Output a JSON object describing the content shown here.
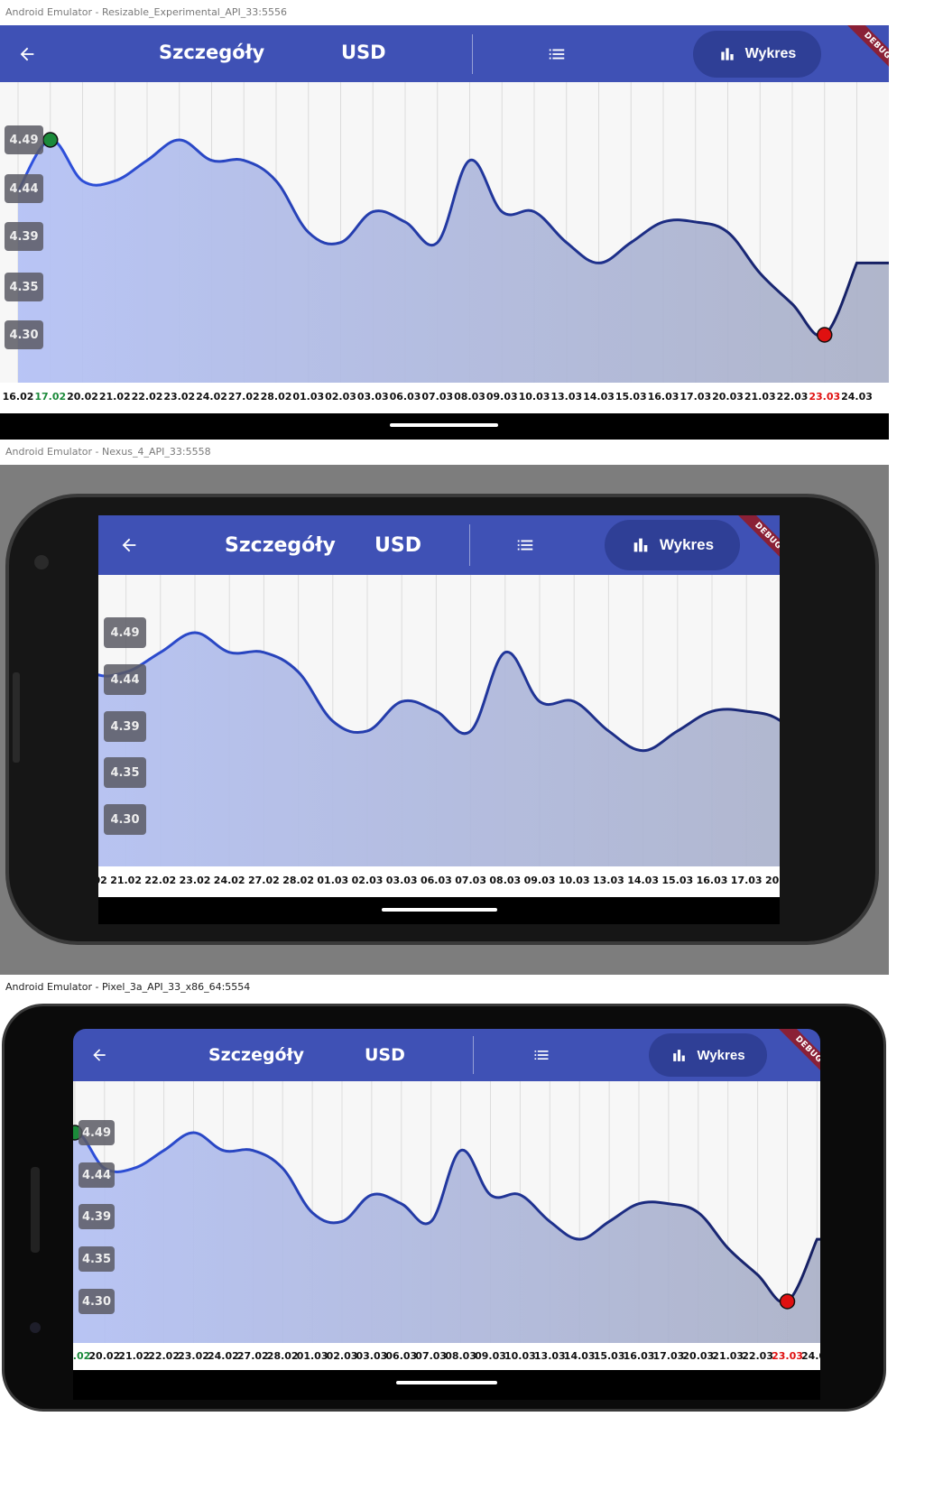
{
  "windows": [
    {
      "title": "Android Emulator - Resizable_Experimental_API_33:5556"
    },
    {
      "title": "Android Emulator - Nexus_4_API_33:5558"
    },
    {
      "title": "Android Emulator - Pixel_3a_API_33_x86_64:5554"
    }
  ],
  "appbar": {
    "title": "Szczegóły",
    "currency": "USD",
    "chart_button_label": "Wykres",
    "debug_banner": "DEBUG"
  },
  "icons": {
    "back": "arrow-back-icon",
    "list": "list-icon",
    "chart": "bar-chart-icon"
  },
  "colors": {
    "appbar": "#3f51b5",
    "chart_button": "#2f3f96",
    "line": "#1b2a8a",
    "max_marker": "#1b8a3a",
    "min_marker": "#e01010",
    "max_label": "#1b8a3a",
    "min_label": "#e01010"
  },
  "y_labels": [
    "4.49",
    "4.44",
    "4.39",
    "4.35",
    "4.30"
  ],
  "chart_data": {
    "type": "area",
    "x": [
      "16.02",
      "17.02",
      "20.02",
      "21.02",
      "22.02",
      "23.02",
      "24.02",
      "27.02",
      "28.02",
      "01.03",
      "02.03",
      "03.03",
      "06.03",
      "07.03",
      "08.03",
      "09.03",
      "10.03",
      "13.03",
      "14.03",
      "15.03",
      "16.03",
      "17.03",
      "20.03",
      "21.03",
      "22.03",
      "23.03",
      "24.03"
    ],
    "values": [
      4.44,
      4.49,
      4.45,
      4.45,
      4.47,
      4.49,
      4.47,
      4.47,
      4.45,
      4.4,
      4.39,
      4.42,
      4.41,
      4.39,
      4.47,
      4.42,
      4.42,
      4.39,
      4.37,
      4.39,
      4.41,
      4.41,
      4.4,
      4.36,
      4.33,
      4.3,
      4.37
    ],
    "y_ticks": [
      4.49,
      4.44,
      4.39,
      4.35,
      4.3
    ],
    "max_label": "17.02",
    "min_label": "23.03"
  }
}
